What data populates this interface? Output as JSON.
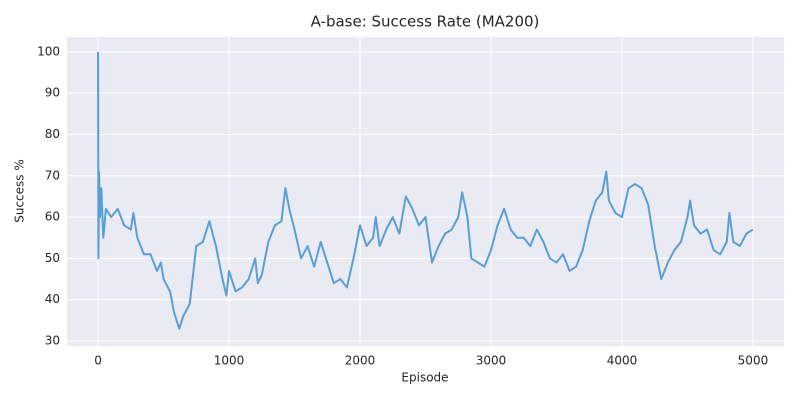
{
  "chart_data": {
    "type": "line",
    "title": "A-base: Success Rate (MA200)",
    "x_label": "Episode",
    "y_label": "Success %",
    "x": [
      0,
      3,
      8,
      15,
      25,
      40,
      60,
      100,
      150,
      200,
      250,
      270,
      300,
      350,
      400,
      450,
      480,
      500,
      550,
      580,
      620,
      650,
      700,
      750,
      800,
      850,
      900,
      950,
      980,
      1000,
      1050,
      1100,
      1150,
      1200,
      1220,
      1250,
      1300,
      1350,
      1400,
      1430,
      1460,
      1500,
      1550,
      1600,
      1650,
      1700,
      1750,
      1800,
      1850,
      1900,
      1950,
      2000,
      2050,
      2100,
      2120,
      2150,
      2200,
      2250,
      2300,
      2350,
      2400,
      2450,
      2500,
      2550,
      2600,
      2650,
      2700,
      2750,
      2780,
      2820,
      2850,
      2900,
      2950,
      3000,
      3050,
      3100,
      3150,
      3200,
      3250,
      3300,
      3350,
      3400,
      3450,
      3500,
      3550,
      3600,
      3650,
      3700,
      3750,
      3800,
      3850,
      3880,
      3900,
      3950,
      4000,
      4050,
      4100,
      4150,
      4200,
      4250,
      4300,
      4350,
      4400,
      4450,
      4500,
      4520,
      4550,
      4600,
      4650,
      4700,
      4750,
      4800,
      4820,
      4850,
      4900,
      4950,
      5000
    ],
    "series": [
      {
        "name": "Success %",
        "color": "#5a9fd4",
        "values": [
          100,
          50,
          71,
          60,
          67,
          55,
          62,
          60,
          62,
          58,
          57,
          61,
          55,
          51,
          51,
          47,
          49,
          45,
          42,
          37,
          33,
          36,
          39,
          53,
          54,
          59,
          53,
          45,
          41,
          47,
          42,
          43,
          45,
          50,
          44,
          46,
          54,
          58,
          59,
          67,
          62,
          57,
          50,
          53,
          48,
          54,
          49,
          44,
          45,
          43,
          50,
          58,
          53,
          55,
          60,
          53,
          57,
          60,
          56,
          65,
          62,
          58,
          60,
          49,
          53,
          56,
          57,
          60,
          66,
          60,
          50,
          49,
          48,
          52,
          58,
          62,
          57,
          55,
          55,
          53,
          57,
          54,
          50,
          49,
          51,
          47,
          48,
          52,
          59,
          64,
          66,
          71,
          64,
          61,
          60,
          67,
          68,
          67,
          63,
          53,
          45,
          49,
          52,
          54,
          60,
          64,
          58,
          56,
          57,
          52,
          51,
          54,
          61,
          54,
          53,
          56,
          57
        ]
      }
    ],
    "xlim": [
      -237,
      5237
    ],
    "ylim": [
      28.8,
      103.6
    ],
    "xticks": [
      0,
      1000,
      2000,
      3000,
      4000,
      5000
    ],
    "yticks": [
      30,
      40,
      50,
      60,
      70,
      80,
      90,
      100
    ],
    "grid": true
  }
}
